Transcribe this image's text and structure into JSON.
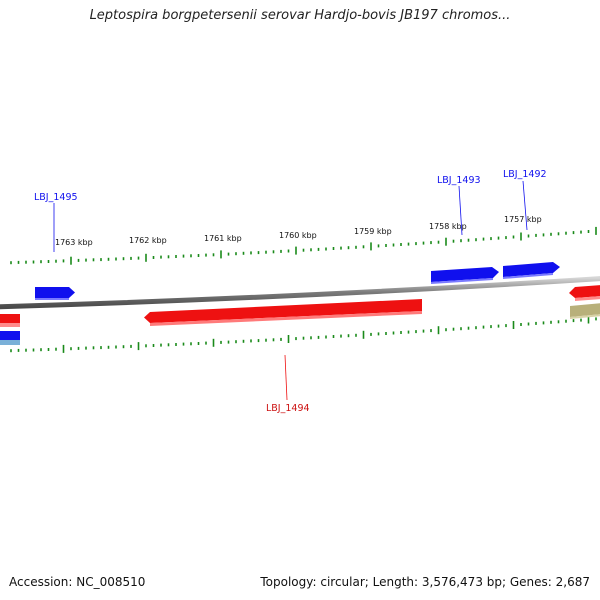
{
  "title": "Leptospira borgpetersenii serovar Hardjo-bovis JB197 chromos...",
  "footer": {
    "accession": "Accession: NC_008510",
    "summary": "Topology: circular; Length: 3,576,473 bp; Genes: 2,687"
  },
  "colors": {
    "forward_gene": "#1010ee",
    "reverse_gene": "#ee1111",
    "other_feature": "#b8b07a",
    "backbone": "#8c8c8c",
    "ticks": "#1a8a1a",
    "label_text": "#111111"
  },
  "ticks": {
    "top_labels": [
      "1763 kbp",
      "1762 kbp",
      "1761 kbp",
      "1760 kbp",
      "1759 kbp",
      "1758 kbp",
      "1757 kbp"
    ]
  },
  "gene_labels": [
    {
      "name": "LBJ_1495",
      "strand": "forward"
    },
    {
      "name": "LBJ_1493",
      "strand": "forward"
    },
    {
      "name": "LBJ_1492",
      "strand": "forward"
    },
    {
      "name": "LBJ_1494",
      "strand": "reverse"
    }
  ]
}
